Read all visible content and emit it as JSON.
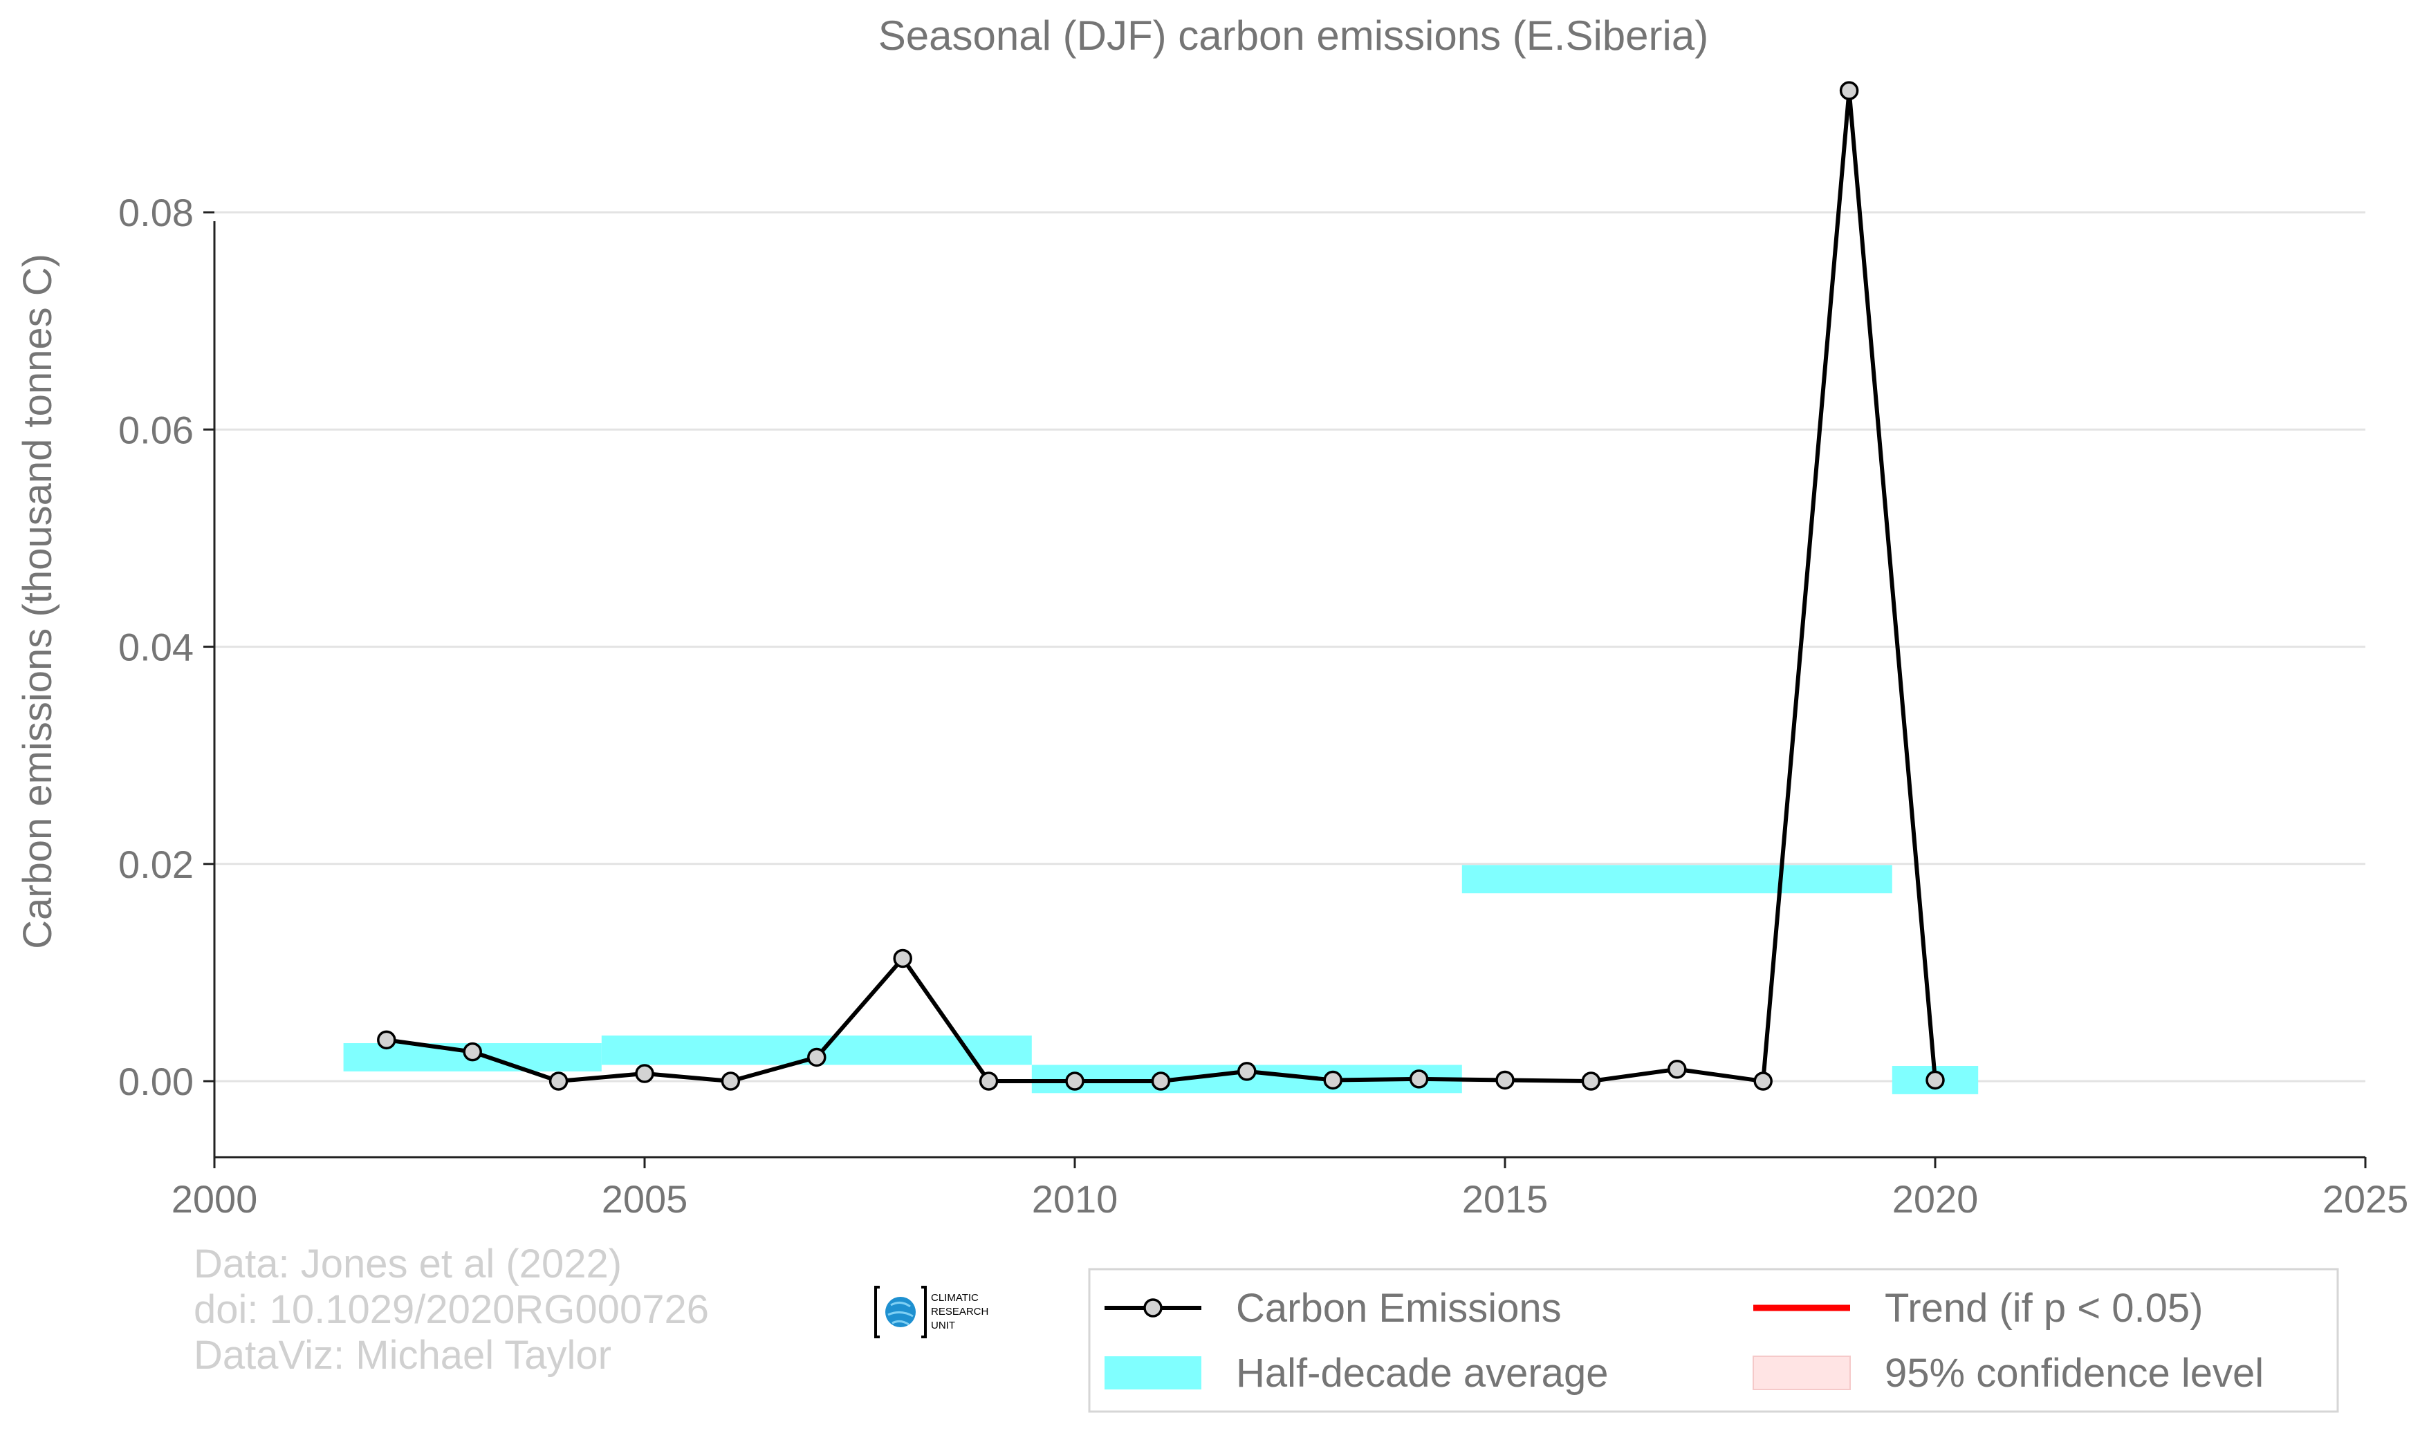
{
  "chart_data": {
    "type": "line",
    "title": "Seasonal (DJF) carbon emissions (E.Siberia)",
    "xlabel": "",
    "ylabel": "Carbon emissions (thousand tonnes C)",
    "xlim": [
      2000,
      2025
    ],
    "ylim": [
      -0.007,
      0.09
    ],
    "x_ticks": [
      "2000",
      "2005",
      "2010",
      "2015",
      "2020",
      "2025"
    ],
    "y_ticks": [
      "0.00",
      "0.02",
      "0.04",
      "0.06",
      "0.08"
    ],
    "grid": "horizontal",
    "legend_position": "bottom-right",
    "series": [
      {
        "name": "Carbon Emissions",
        "color": "#000000",
        "x": [
          2002,
          2003,
          2004,
          2005,
          2006,
          2007,
          2008,
          2009,
          2010,
          2011,
          2012,
          2013,
          2014,
          2015,
          2016,
          2017,
          2018,
          2019,
          2020
        ],
        "y": [
          0.0038,
          0.0027,
          0.0,
          0.0007,
          0.0,
          0.0022,
          0.0113,
          0.0,
          0.0,
          0.0,
          0.0009,
          0.0001,
          0.0002,
          0.0001,
          0.0,
          0.0011,
          0.0,
          0.0912,
          0.0001
        ]
      }
    ],
    "half_decade_average": {
      "name": "Half-decade average",
      "color": "#80ffff",
      "bands": [
        {
          "x0": 2001.5,
          "x1": 2004.5,
          "y0": 0.0009,
          "y1": 0.0035
        },
        {
          "x0": 2004.5,
          "x1": 2009.5,
          "y0": 0.0015,
          "y1": 0.0042
        },
        {
          "x0": 2009.5,
          "x1": 2014.5,
          "y0": -0.0011,
          "y1": 0.0015
        },
        {
          "x0": 2014.5,
          "x1": 2019.5,
          "y0": 0.0173,
          "y1": 0.0199
        },
        {
          "x0": 2019.5,
          "x1": 2020.5,
          "y0": -0.0012,
          "y1": 0.0014
        }
      ]
    },
    "legend": [
      {
        "label": "Carbon Emissions",
        "kind": "line-marker",
        "color": "#000000"
      },
      {
        "label": "Trend (if p < 0.05)",
        "kind": "line",
        "color": "#ff0000"
      },
      {
        "label": "Half-decade average",
        "kind": "band",
        "color": "#80ffff"
      },
      {
        "label": "95% confidence level",
        "kind": "band",
        "color": "#ffe4e4"
      }
    ]
  },
  "credits": {
    "line1": "Data: Jones et al (2022)",
    "line2": "doi: 10.1029/2020RG000726",
    "line3": "DataViz: Michael Taylor"
  },
  "logo": {
    "line1": "CLIMATIC",
    "line2": "RESEARCH",
    "line3": "UNIT",
    "icon": "globe-icon",
    "globe_color": "#1e90d0"
  }
}
